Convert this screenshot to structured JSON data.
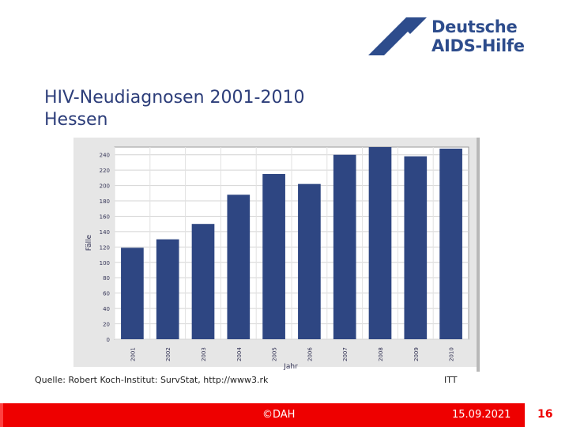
{
  "logo": {
    "line1": "Deutsche",
    "line2": "AIDS-Hilfe",
    "color": "#2d4c8c"
  },
  "slide": {
    "title_line1": "HIV-Neudiagnosen 2001-2010",
    "title_line2": "Hessen"
  },
  "chart_data": {
    "type": "bar",
    "categories": [
      "2001",
      "2002",
      "2003",
      "2004",
      "2005",
      "2006",
      "2007",
      "2008",
      "2009",
      "2010"
    ],
    "values": [
      119,
      130,
      150,
      188,
      215,
      202,
      240,
      250,
      238,
      248
    ],
    "ylabel": "Fälle",
    "xlabel": "Jahr",
    "yticks": [
      "0",
      "20",
      "40",
      "60",
      "80",
      "100",
      "120",
      "140",
      "160",
      "180",
      "200",
      "220",
      "240"
    ],
    "ylim": [
      0,
      250
    ],
    "grid": true,
    "bar_color": "#2e4682"
  },
  "source": {
    "text": "Quelle: Robert Koch-Institut: SurvStat, http://www3.rk",
    "right": "ITT"
  },
  "footer": {
    "center": "©DAH",
    "date": "15.09.2021",
    "page": "16",
    "bar_color": "#ee0000"
  }
}
